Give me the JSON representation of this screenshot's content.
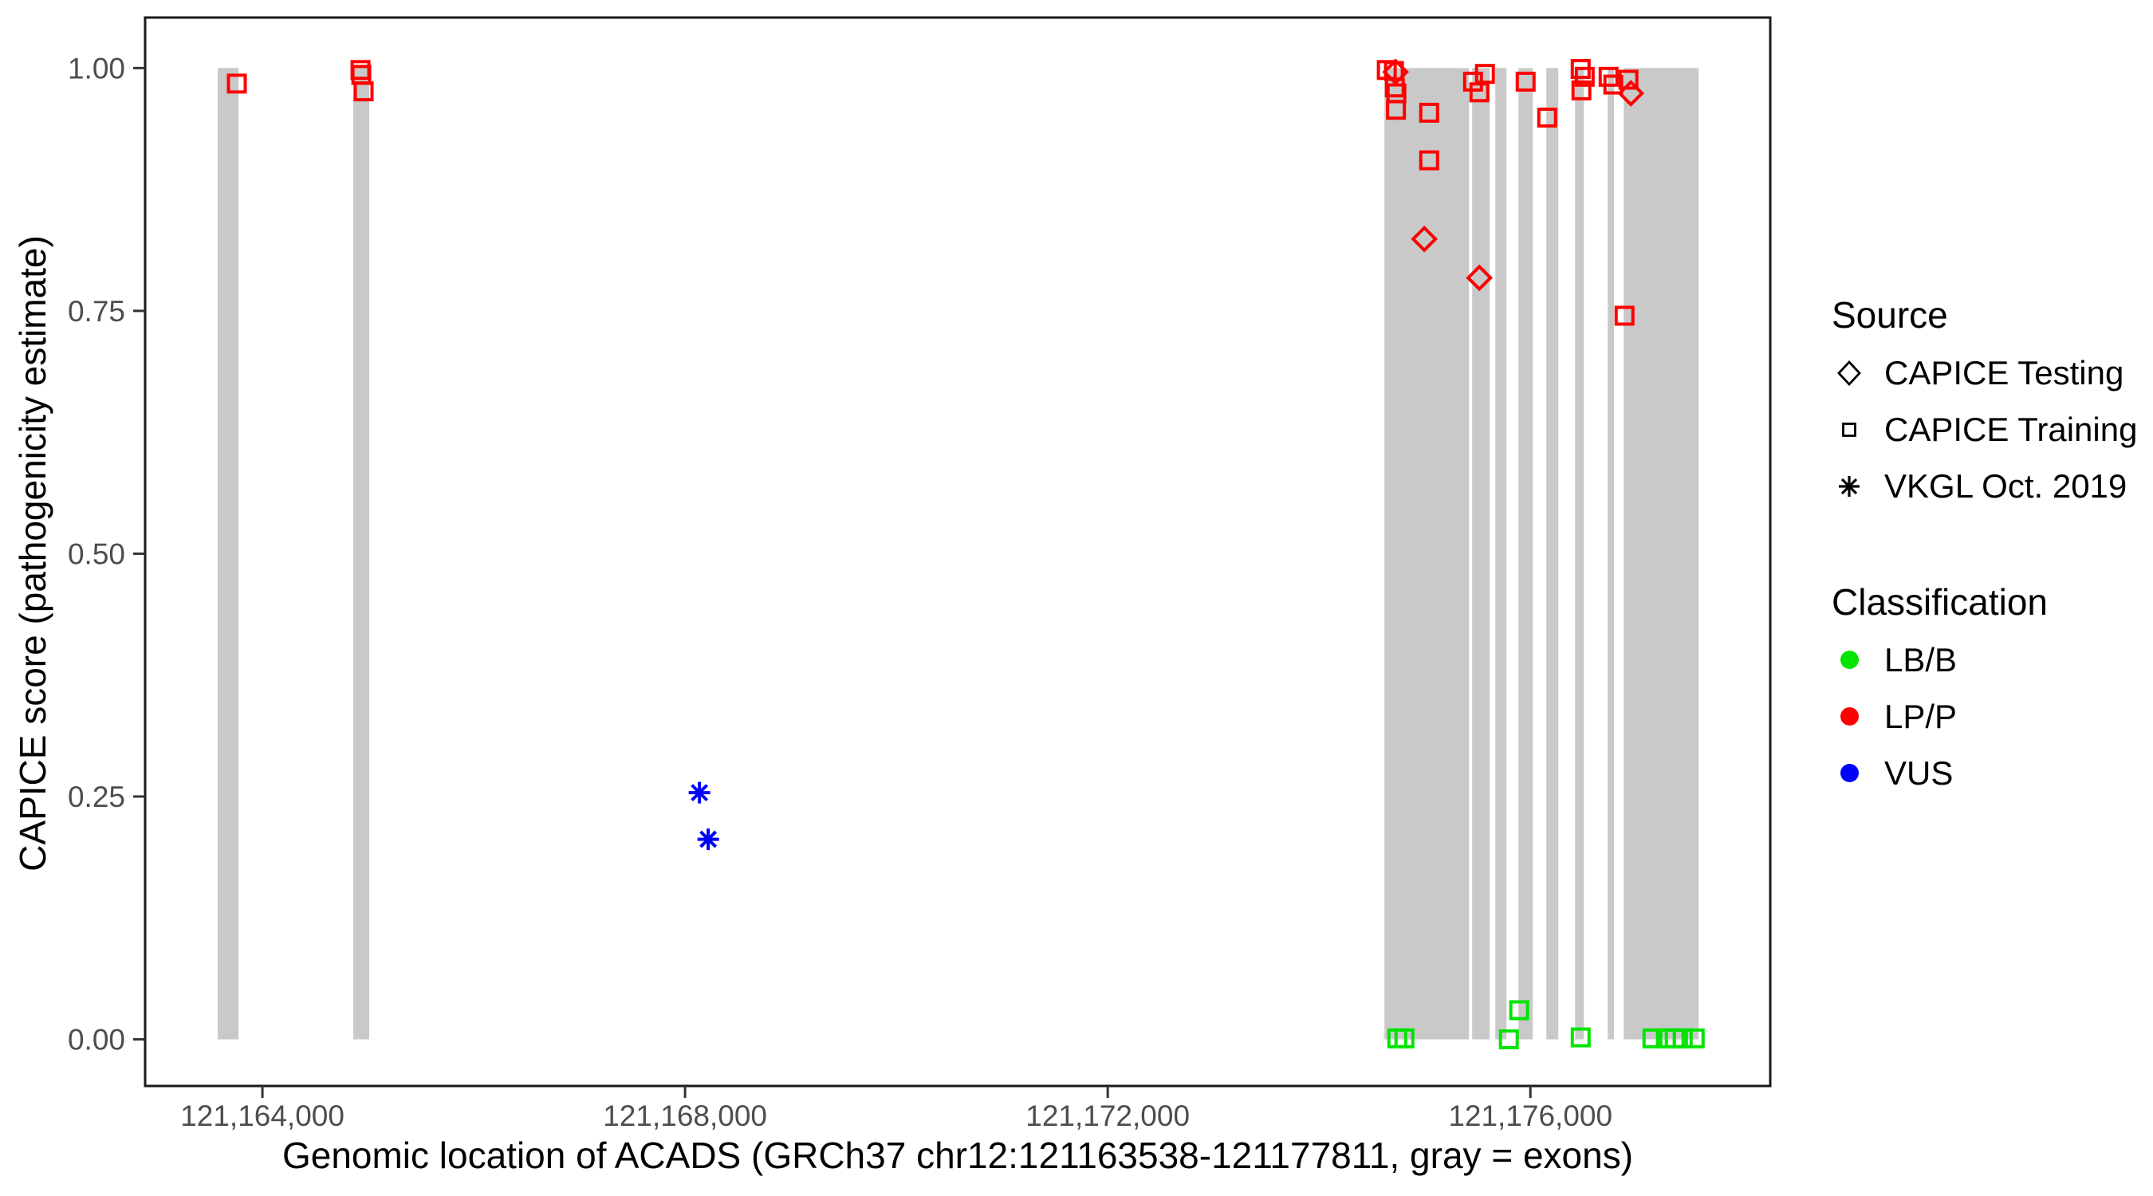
{
  "figure": {
    "xlabel": "Genomic location of ACADS (GRCh37 chr12:121163538-121177811, gray = exons)",
    "ylabel": "CAPICE score (pathogenicity estimate)"
  },
  "legend_source": {
    "title": "Source",
    "items": [
      {
        "symbol": "diamond",
        "label": "CAPICE Testing"
      },
      {
        "symbol": "square",
        "label": "CAPICE Training"
      },
      {
        "symbol": "asterisk",
        "label": "VKGL Oct. 2019"
      }
    ]
  },
  "legend_classification": {
    "title": "Classification",
    "items": [
      {
        "color": "#00E400",
        "label": "LB/B"
      },
      {
        "color": "#FF0000",
        "label": "LP/P"
      },
      {
        "color": "#0000FF",
        "label": "VUS"
      }
    ]
  },
  "chart_data": {
    "type": "scatter",
    "title": "",
    "xlabel": "Genomic location of ACADS (GRCh37 chr12:121163538-121177811, gray = exons)",
    "ylabel": "CAPICE score (pathogenicity estimate)",
    "grid": false,
    "legend_position": "right",
    "xlim": [
      121162890,
      121178270
    ],
    "ylim": [
      -0.048,
      1.052
    ],
    "x_ticks": [
      {
        "value": 121164000,
        "label": "121,164,000"
      },
      {
        "value": 121168000,
        "label": "121,168,000"
      },
      {
        "value": 121172000,
        "label": "121,172,000"
      },
      {
        "value": 121176000,
        "label": "121,176,000"
      }
    ],
    "y_ticks": [
      {
        "value": 0.0,
        "label": "0.00"
      },
      {
        "value": 0.25,
        "label": "0.25"
      },
      {
        "value": 0.5,
        "label": "0.50"
      },
      {
        "value": 0.75,
        "label": "0.75"
      },
      {
        "value": 1.0,
        "label": "1.00"
      }
    ],
    "exon_color": "#C9C9C9",
    "exons": [
      [
        121163577,
        121163774
      ],
      [
        121164860,
        121165011
      ],
      [
        121174619,
        121175419
      ],
      [
        121175449,
        121175615
      ],
      [
        121175668,
        121175774
      ],
      [
        121175887,
        121176023
      ],
      [
        121176151,
        121176264
      ],
      [
        121176423,
        121176506
      ],
      [
        121176732,
        121176792
      ],
      [
        121176883,
        121177592
      ]
    ],
    "series": [
      {
        "name": "CAPICE Testing - LP/P",
        "source": "CAPICE Testing",
        "classification": "LP/P",
        "shape": "diamond",
        "color": "#FF0000",
        "points": [
          [
            121174724,
            0.996
          ],
          [
            121174996,
            0.824
          ],
          [
            121175517,
            0.784
          ],
          [
            121176951,
            0.974
          ]
        ]
      },
      {
        "name": "CAPICE Training - LP/P",
        "source": "CAPICE Training",
        "classification": "LP/P",
        "shape": "square",
        "color": "#FF0000",
        "points": [
          [
            121163758,
            0.984
          ],
          [
            121164928,
            0.998
          ],
          [
            121164936,
            0.993
          ],
          [
            121164958,
            0.976
          ],
          [
            121174641,
            0.998
          ],
          [
            121174709,
            0.997
          ],
          [
            121174717,
            0.98
          ],
          [
            121174732,
            0.974
          ],
          [
            121174728,
            0.957
          ],
          [
            121175042,
            0.954
          ],
          [
            121175042,
            0.905
          ],
          [
            121175457,
            0.986
          ],
          [
            121175570,
            0.994
          ],
          [
            121175517,
            0.975
          ],
          [
            121175955,
            0.986
          ],
          [
            121176159,
            0.949
          ],
          [
            121176476,
            0.999
          ],
          [
            121176514,
            0.991
          ],
          [
            121176483,
            0.977
          ],
          [
            121176740,
            0.991
          ],
          [
            121176785,
            0.983
          ],
          [
            121176928,
            0.988
          ],
          [
            121176891,
            0.745
          ]
        ]
      },
      {
        "name": "CAPICE Training - LB/B",
        "source": "CAPICE Training",
        "classification": "LB/B",
        "shape": "square",
        "color": "#00E400",
        "points": [
          [
            121174740,
            0.001
          ],
          [
            121174808,
            0.001
          ],
          [
            121175796,
            0.0
          ],
          [
            121175894,
            0.03
          ],
          [
            121176476,
            0.002
          ],
          [
            121177155,
            0.001
          ],
          [
            121177283,
            0.001
          ],
          [
            121177366,
            0.001
          ],
          [
            121177442,
            0.001
          ],
          [
            121177555,
            0.001
          ]
        ]
      },
      {
        "name": "VKGL Oct. 2019 - VUS",
        "source": "VKGL Oct. 2019",
        "classification": "VUS",
        "shape": "asterisk",
        "color": "#0000FF",
        "points": [
          [
            121168136,
            0.254
          ],
          [
            121168219,
            0.206
          ]
        ]
      }
    ]
  }
}
